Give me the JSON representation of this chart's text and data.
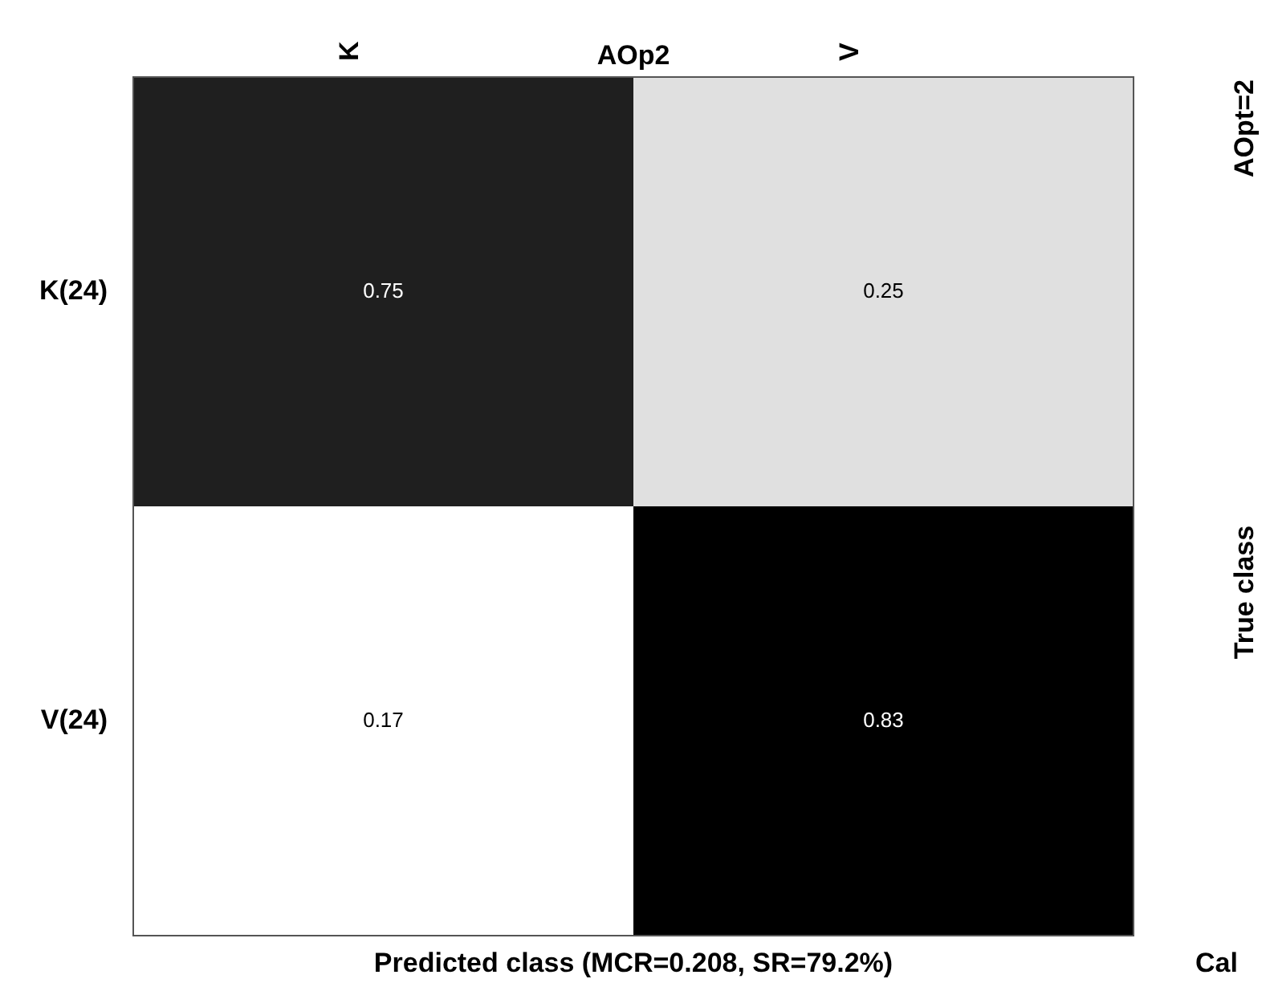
{
  "chart_data": {
    "type": "heatmap",
    "title": "AOp2",
    "xlabel": "Predicted class (MCR=0.208, SR=79.2%)",
    "ylabel": "True class",
    "annotations": [
      "AOpt=2",
      "Cal"
    ],
    "data_labels": true,
    "categories": [
      "K",
      "V"
    ],
    "y_categories": [
      "K(24)",
      "V(24)"
    ],
    "cells": [
      [
        0.75,
        0.25
      ],
      [
        0.17,
        0.83
      ]
    ]
  }
}
